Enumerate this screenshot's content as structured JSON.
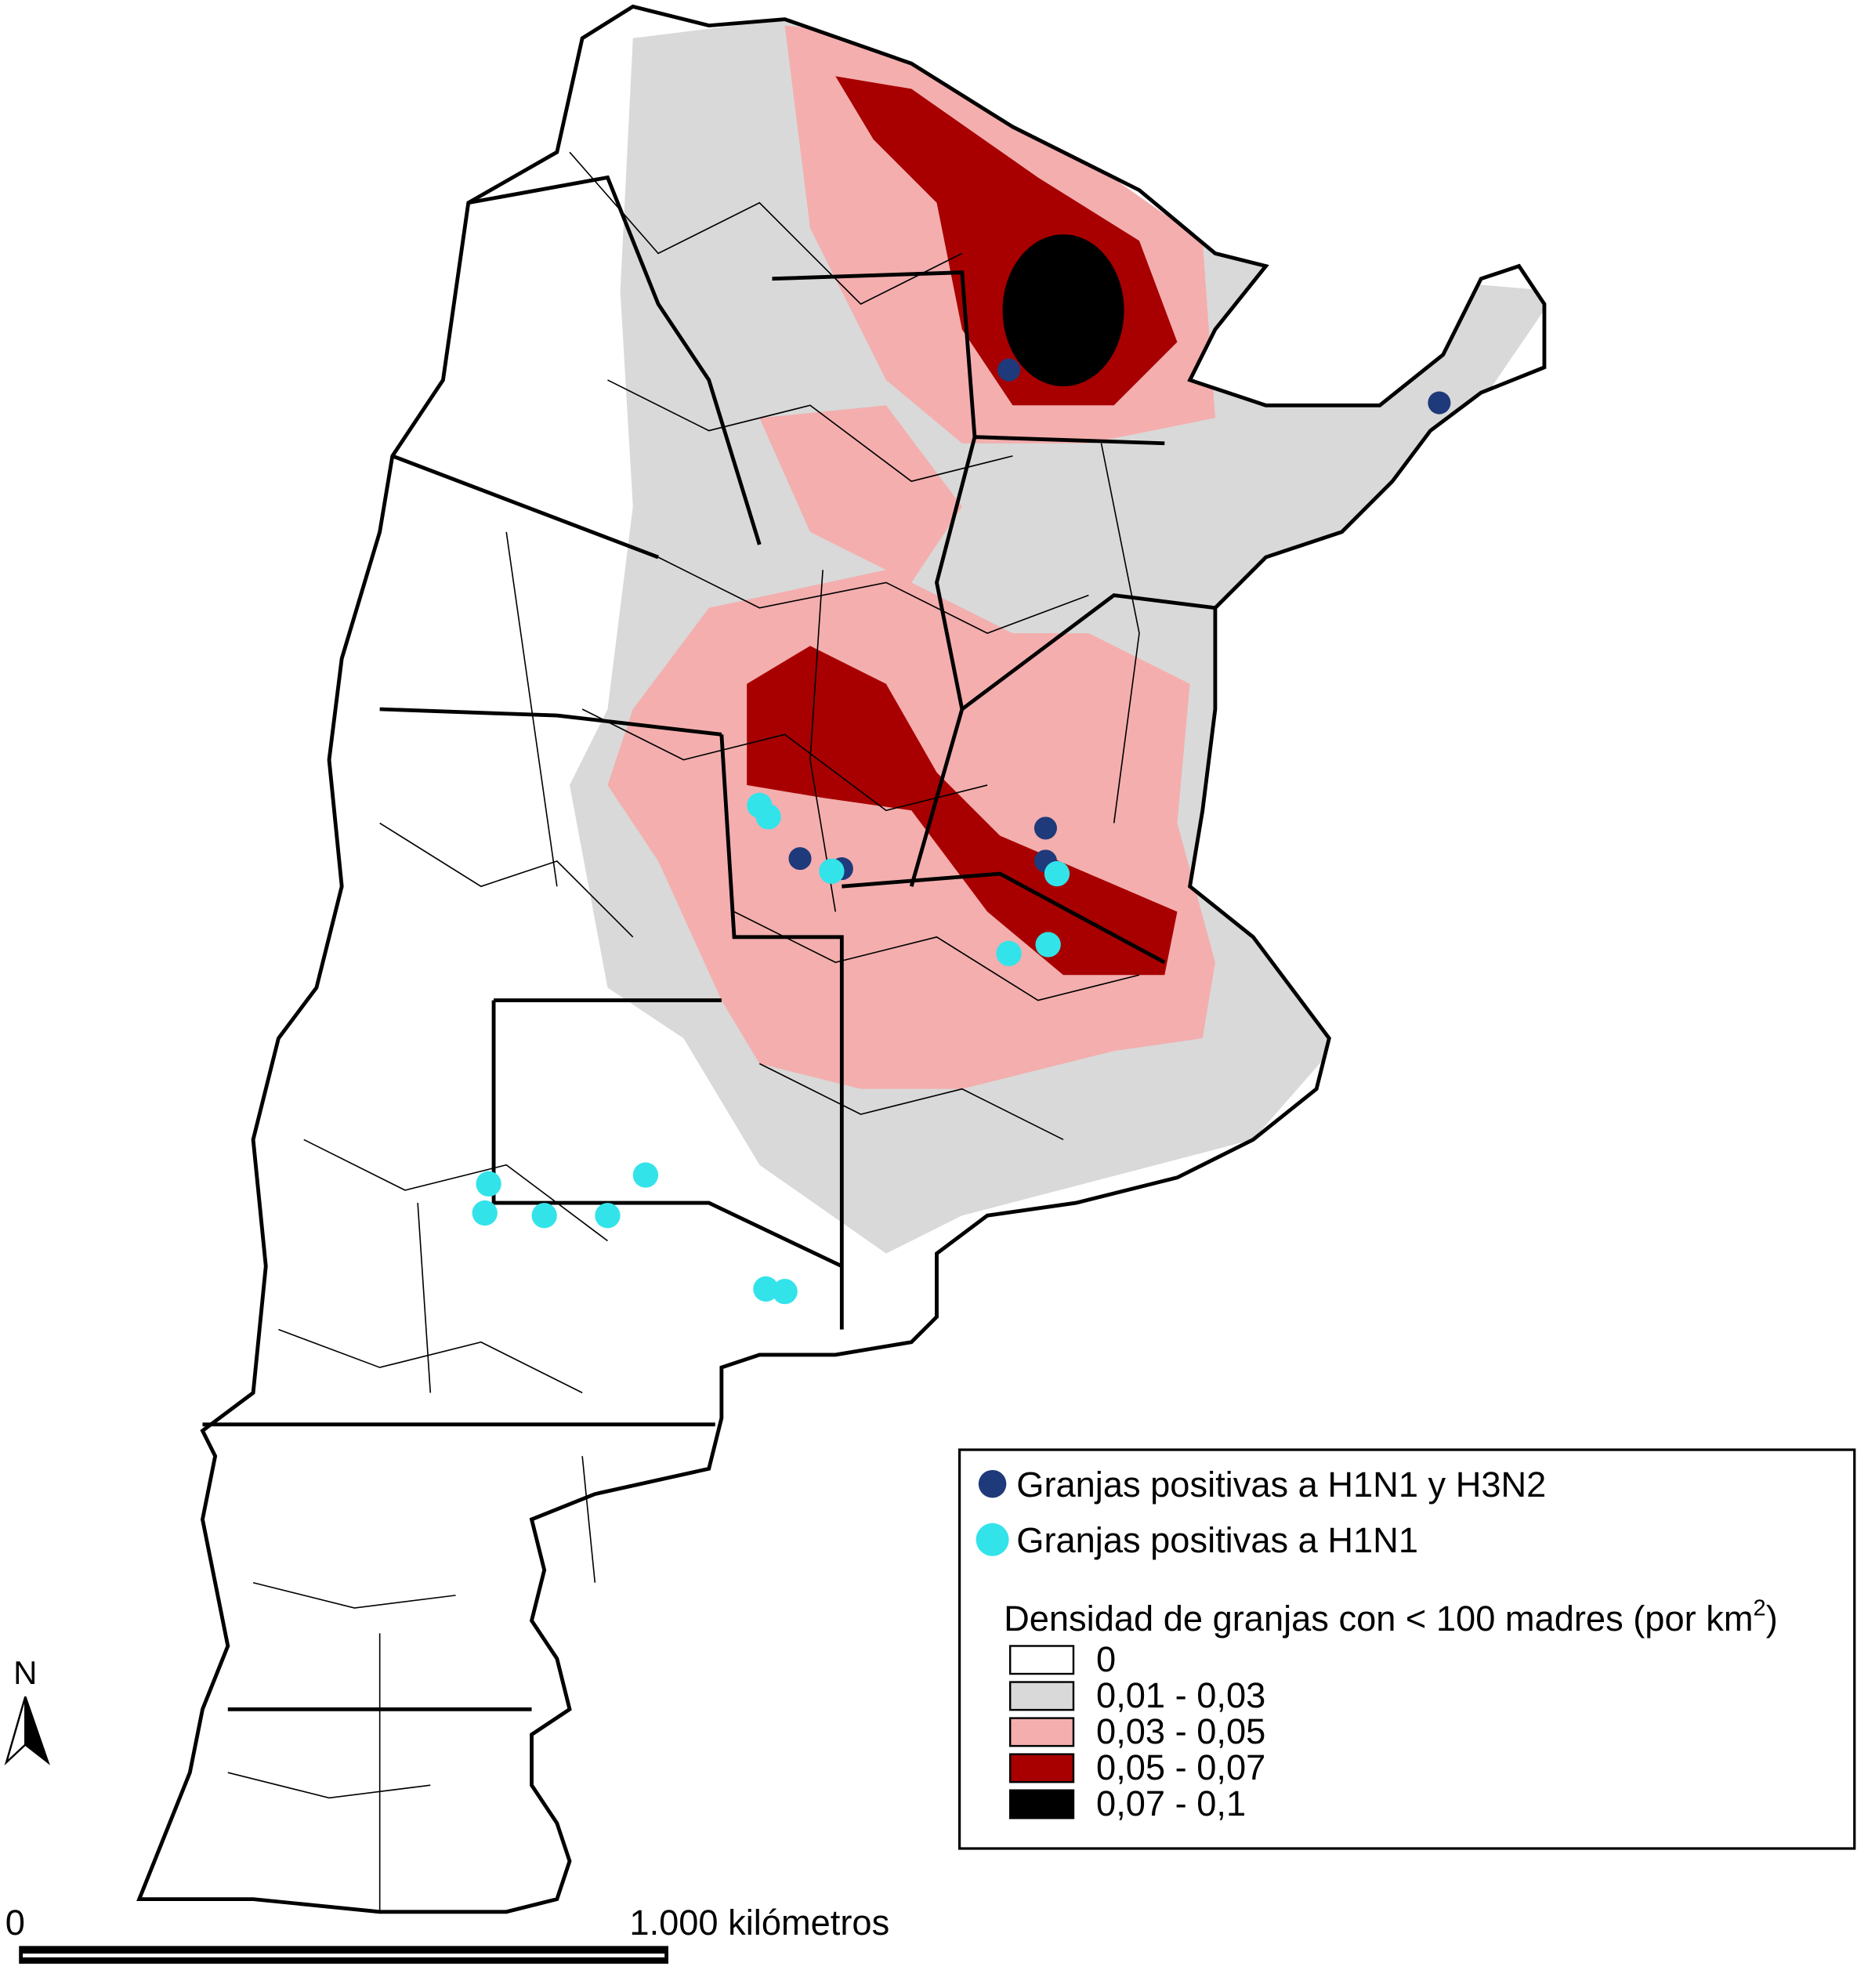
{
  "legend": {
    "points": [
      {
        "label": "Granjas positivas a H1N1 y H3N2",
        "color": "#1f3a7a"
      },
      {
        "label": "Granjas positivas a H1N1",
        "color": "#33e3ea"
      }
    ],
    "density_title": "Densidad de granjas con < 100 madres (por km",
    "density_title_sup": "2",
    "density_title_end": ")",
    "classes": [
      {
        "label": "0",
        "color": "#ffffff"
      },
      {
        "label": "0,01 - 0,03",
        "color": "#d9d9d9"
      },
      {
        "label": "0,03 - 0,05",
        "color": "#f4aeae"
      },
      {
        "label": "0,05 - 0,07",
        "color": "#a80000"
      },
      {
        "label": "0,07 - 0,1",
        "color": "#000000"
      }
    ]
  },
  "scale_bar": {
    "start": "0",
    "end": "1.000 kilómetros"
  },
  "north": "N"
}
